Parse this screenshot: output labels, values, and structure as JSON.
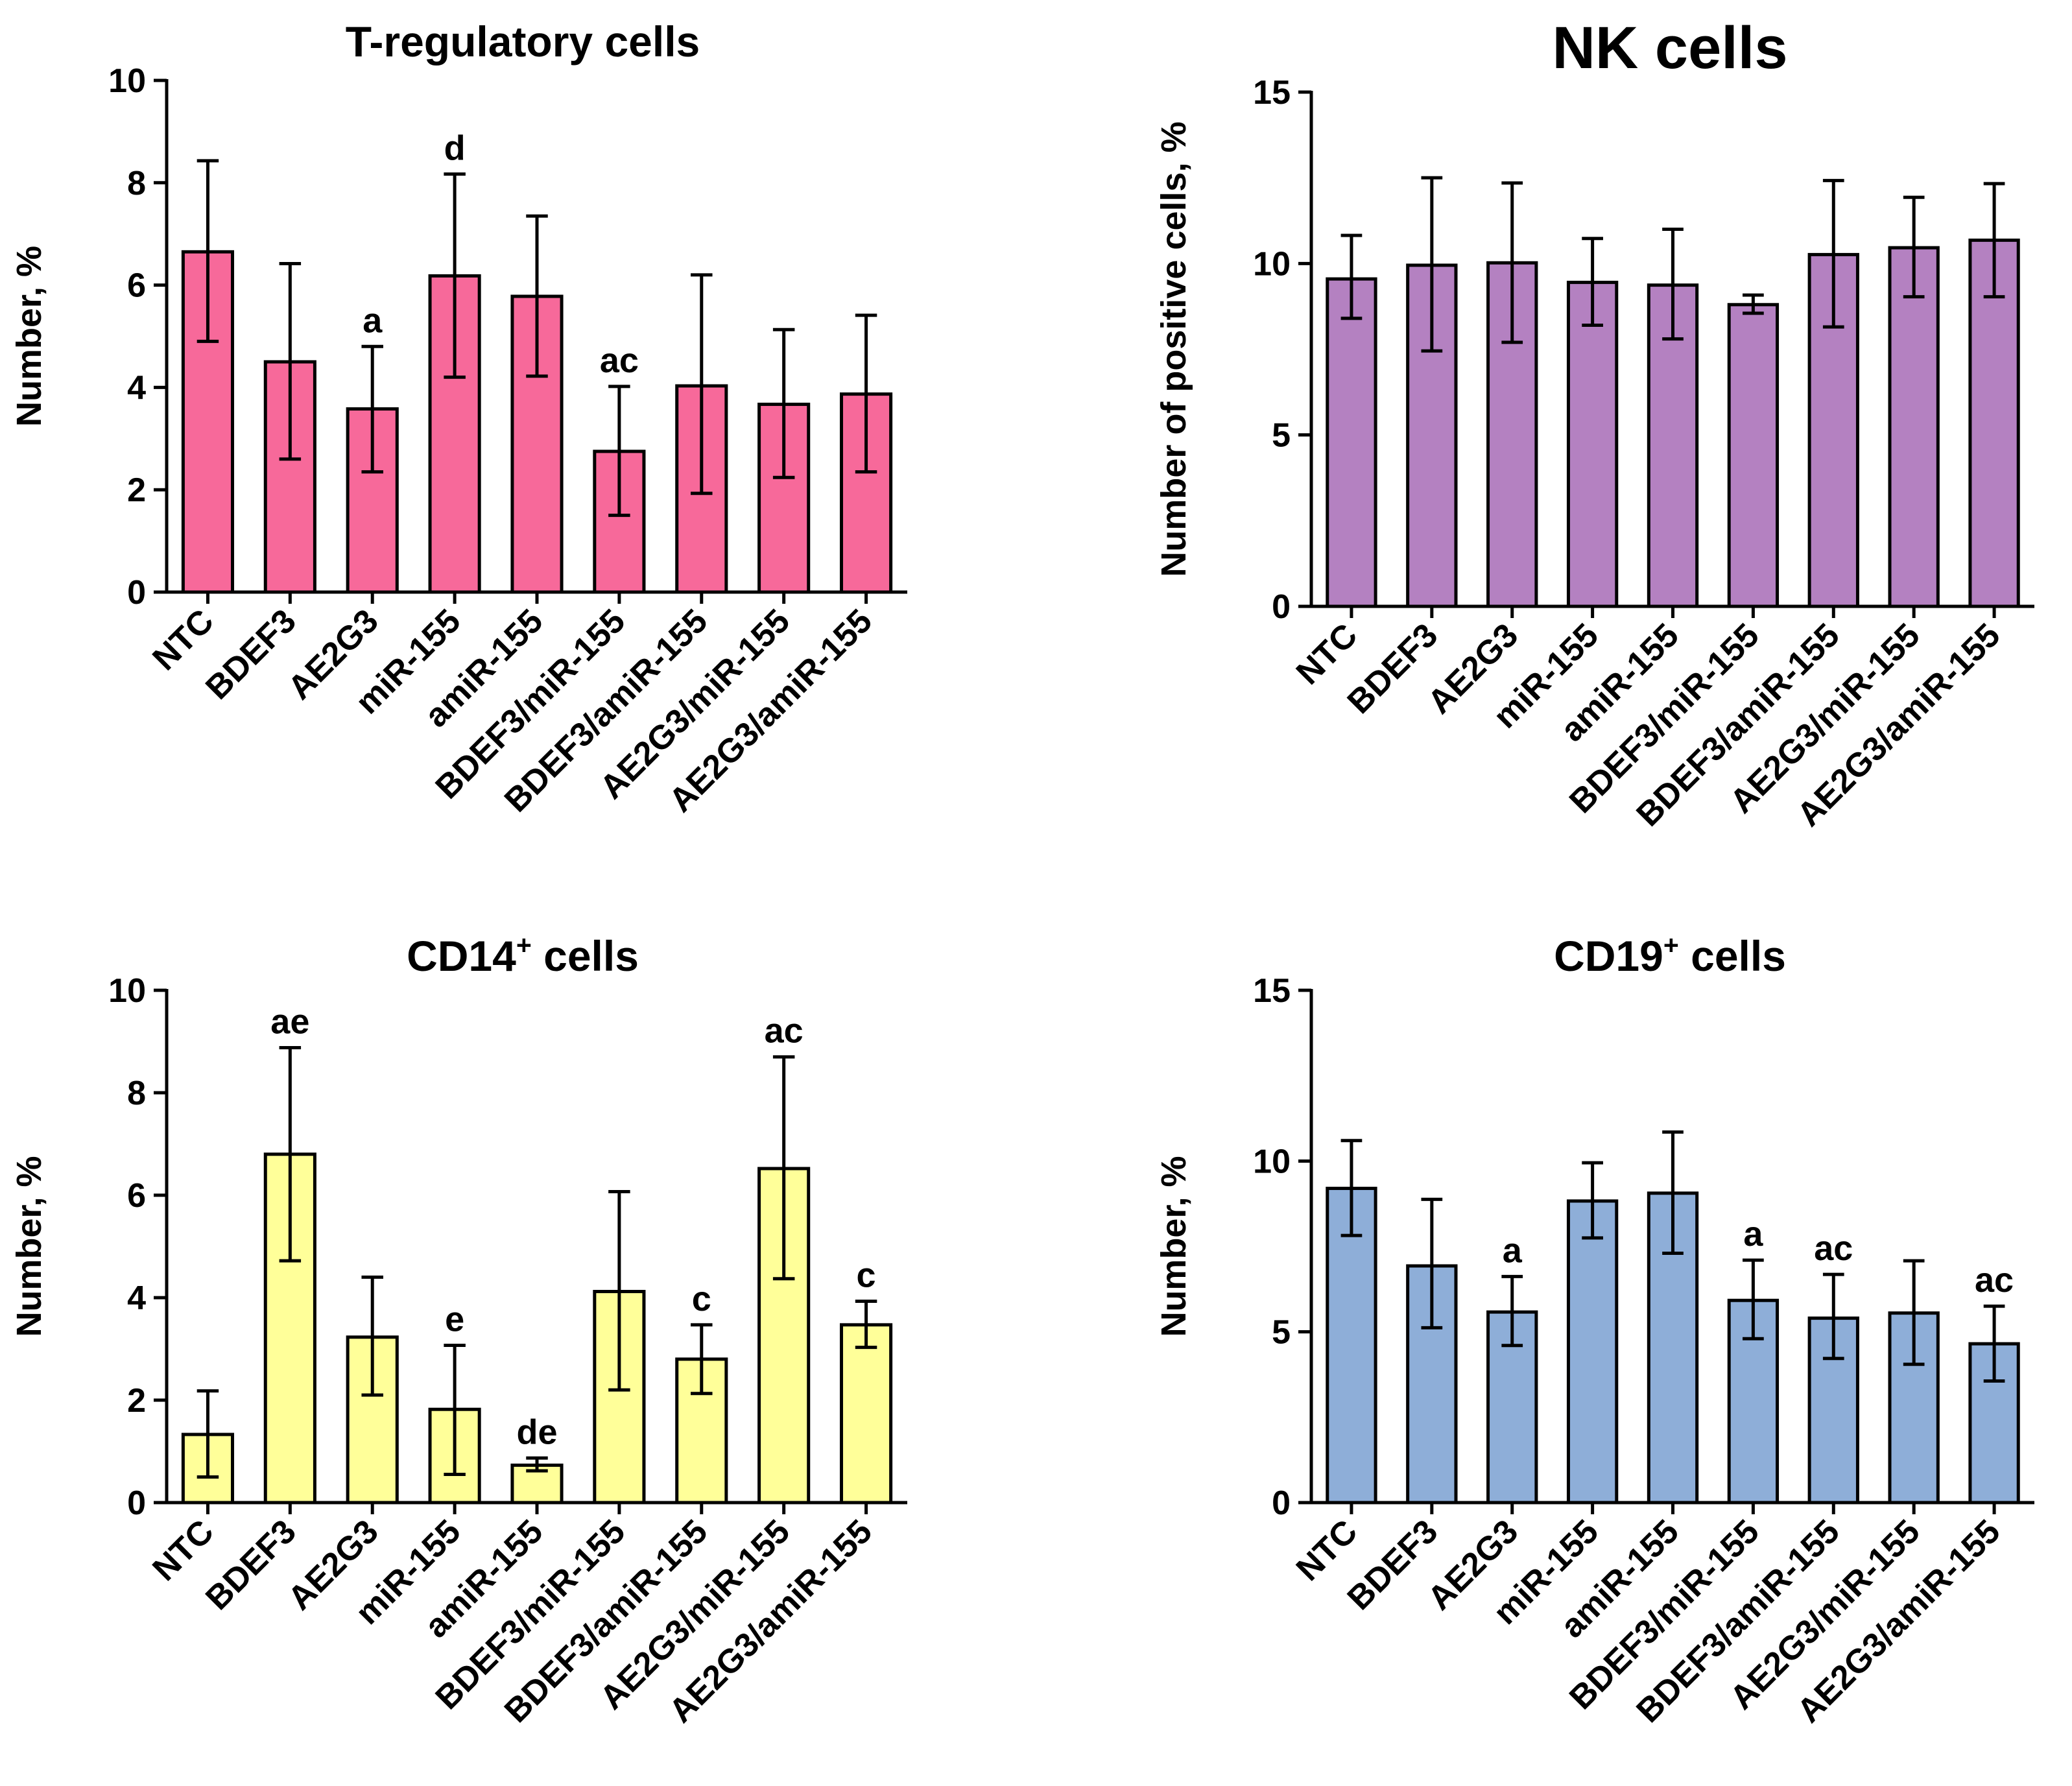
{
  "chart_data": [
    {
      "type": "bar",
      "title": "T-regulatory cells",
      "title_sup": "",
      "ylabel": "Number, %",
      "ylim": [
        0,
        10
      ],
      "yticks": [
        0,
        2,
        4,
        6,
        8,
        10
      ],
      "color": "#f7699a",
      "categories": [
        "NTC",
        "BDEF3",
        "AE2G3",
        "miR-155",
        "amiR-155",
        "BDEF3/miR-155",
        "BDEF3/amiR-155",
        "AE2G3/miR-155",
        "AE2G3/amiR-155"
      ],
      "values": [
        6.65,
        4.5,
        3.58,
        6.18,
        5.78,
        2.75,
        4.03,
        3.67,
        3.87
      ],
      "err_low": [
        4.9,
        2.6,
        2.35,
        4.2,
        4.22,
        1.5,
        1.93,
        2.24,
        2.35
      ],
      "err_high": [
        8.43,
        6.42,
        4.8,
        8.17,
        7.35,
        4.02,
        6.2,
        5.13,
        5.41
      ],
      "annotations": [
        "",
        "",
        "a",
        "d",
        "",
        "ac",
        "",
        "",
        ""
      ]
    },
    {
      "type": "bar",
      "title": "NK cells",
      "title_sup": "",
      "ylabel": "Number of positive cells, %",
      "ylim": [
        0,
        15
      ],
      "yticks": [
        0,
        5,
        10,
        15
      ],
      "color": "#b481c1",
      "categories": [
        "NTC",
        "BDEF3",
        "AE2G3",
        "miR-155",
        "amiR-155",
        "BDEF3/miR-155",
        "BDEF3/amiR-155",
        "AE2G3/miR-155",
        "AE2G3/amiR-155"
      ],
      "values": [
        9.55,
        9.95,
        10.02,
        9.45,
        9.37,
        8.8,
        10.26,
        10.46,
        10.68
      ],
      "err_low": [
        8.4,
        7.45,
        7.7,
        8.2,
        7.8,
        8.55,
        8.15,
        9.03,
        9.03
      ],
      "err_high": [
        10.82,
        12.5,
        12.35,
        10.73,
        11.0,
        9.08,
        12.42,
        11.93,
        12.33
      ],
      "annotations": [
        "",
        "",
        "",
        "",
        "",
        "",
        "",
        "",
        ""
      ]
    },
    {
      "type": "bar",
      "title": "CD14",
      "title_sup": "+",
      "title_suffix": " cells",
      "ylabel": "Number, %",
      "ylim": [
        0,
        10
      ],
      "yticks": [
        0,
        2,
        4,
        6,
        8,
        10
      ],
      "color": "#ffff99",
      "categories": [
        "NTC",
        "BDEF3",
        "AE2G3",
        "miR-155",
        "amiR-155",
        "BDEF3/miR-155",
        "BDEF3/amiR-155",
        "AE2G3/miR-155",
        "AE2G3/amiR-155"
      ],
      "values": [
        1.33,
        6.8,
        3.23,
        1.82,
        0.73,
        4.12,
        2.8,
        6.52,
        3.47
      ],
      "err_low": [
        0.5,
        4.72,
        2.1,
        0.55,
        0.62,
        2.2,
        2.13,
        4.37,
        3.03
      ],
      "err_high": [
        2.18,
        8.88,
        4.4,
        3.07,
        0.87,
        6.07,
        3.47,
        8.7,
        3.93
      ],
      "annotations": [
        "",
        "ae",
        "",
        "e",
        "de",
        "",
        "c",
        "ac",
        "c"
      ]
    },
    {
      "type": "bar",
      "title": "CD19",
      "title_sup": "+",
      "title_suffix": " cells",
      "ylabel": "Number, %",
      "ylim": [
        0,
        15
      ],
      "yticks": [
        0,
        5,
        10,
        15
      ],
      "color": "#8eaed8",
      "categories": [
        "NTC",
        "BDEF3",
        "AE2G3",
        "miR-155",
        "amiR-155",
        "BDEF3/miR-155",
        "BDEF3/amiR-155",
        "AE2G3/miR-155",
        "AE2G3/amiR-155"
      ],
      "values": [
        9.2,
        6.93,
        5.58,
        8.83,
        9.06,
        5.92,
        5.4,
        5.55,
        4.65
      ],
      "err_low": [
        7.82,
        5.12,
        4.6,
        7.75,
        7.3,
        4.8,
        4.22,
        4.05,
        3.56
      ],
      "err_high": [
        10.6,
        8.88,
        6.62,
        9.95,
        10.85,
        7.1,
        6.68,
        7.08,
        5.75
      ],
      "annotations": [
        "",
        "",
        "a",
        "",
        "",
        "a",
        "ac",
        "",
        "ac"
      ]
    }
  ]
}
